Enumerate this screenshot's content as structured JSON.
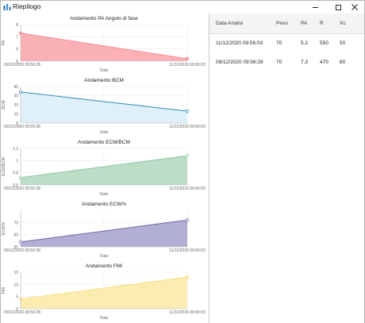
{
  "window": {
    "title": "Riepilogo",
    "controls": {
      "minimize": "minimize",
      "maximize": "maximize",
      "close": "close"
    }
  },
  "table": {
    "columns": [
      "Data Analisi",
      "Peso",
      "PA",
      "R",
      "Xc"
    ],
    "rows": [
      [
        "11/12/2020 09:56:03",
        "70",
        "5.2",
        "550",
        "50"
      ],
      [
        "09/12/2020 09:56:28",
        "70",
        "7.3",
        "470",
        "60"
      ]
    ]
  },
  "chart_data": [
    {
      "type": "area",
      "title": "Andamento PA Angolo di fase",
      "xlabel": "Data",
      "ylabel": "PA",
      "x": [
        "09/12/2020 09:56:28",
        "11/12/2020 09:56:03"
      ],
      "values": [
        7.3,
        5.2
      ],
      "ylim": [
        5,
        8
      ],
      "yticks": [
        "5",
        "6",
        "7",
        "8"
      ],
      "stroke": "#f28b93",
      "fill": "#f9a9ae",
      "marker_fill": "#f9a9ae",
      "grid": true
    },
    {
      "type": "area",
      "title": "Andamento BCM",
      "xlabel": "Data",
      "ylabel": "BCM",
      "x": [
        "09/12/2020 09:56:28",
        "11/12/2020 09:56:03"
      ],
      "values": [
        34,
        13
      ],
      "ylim": [
        0,
        40
      ],
      "yticks": [
        "0",
        "10",
        "20",
        "30",
        "40"
      ],
      "stroke": "#2d8bb0",
      "fill": "#dceefb",
      "marker_fill": "#ffffff",
      "grid": true
    },
    {
      "type": "area",
      "title": "Andamento ECM/BCM",
      "xlabel": "Data",
      "ylabel": "ECM/BCM",
      "x": [
        "09/12/2020 09:56:28",
        "11/12/2020 09:56:03"
      ],
      "values": [
        0.72,
        1.08
      ],
      "ylim": [
        0.6,
        1.2
      ],
      "yticks": [
        "0.6",
        "0.8",
        "1",
        "1.2"
      ],
      "stroke": "#8fc7a4",
      "fill": "#b5d9c0",
      "marker_fill": "#ffffff",
      "grid": true
    },
    {
      "type": "area",
      "title": "Andamento ECW%",
      "xlabel": "Data",
      "ylabel": "ECW%",
      "x": [
        "09/12/2020 09:56:28",
        "11/12/2020 09:56:03"
      ],
      "values": [
        54,
        72
      ],
      "ylim": [
        50,
        80
      ],
      "yticks": [
        "50",
        "60",
        "70"
      ],
      "stroke": "#6f69a8",
      "fill": "#a9a6cf",
      "marker_fill": "#ffffff",
      "grid": true
    },
    {
      "type": "area",
      "title": "Andamento FMI",
      "xlabel": "Data",
      "ylabel": "FMI",
      "x": [
        "09/12/2020 09:56:28",
        "11/12/2020 09:56:03"
      ],
      "values": [
        4,
        13
      ],
      "ylim": [
        0,
        15
      ],
      "yticks": [
        "0",
        "5",
        "10",
        "15"
      ],
      "stroke": "#f6e08a",
      "fill": "#fbeaa6",
      "marker_fill": "#fbeaa6",
      "grid": true
    }
  ]
}
